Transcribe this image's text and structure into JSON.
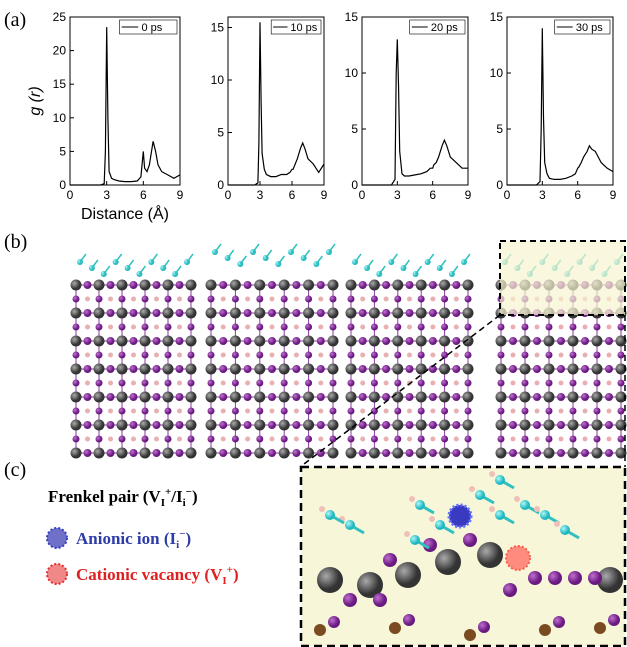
{
  "panels": {
    "a": "(a)",
    "b": "(b)",
    "c": "(c)"
  },
  "chart_data": [
    {
      "type": "line",
      "ylabel": "g (r)",
      "xlabel": "Distance (Å)",
      "x": [
        0,
        0.5,
        1,
        1.5,
        2,
        2.5,
        2.8,
        2.9,
        3.0,
        3.1,
        3.2,
        3.4,
        3.6,
        4,
        4.5,
        5,
        5.5,
        5.8,
        6,
        6.1,
        6.3,
        6.5,
        6.8,
        7,
        7.2,
        7.5,
        8,
        8.5,
        9
      ],
      "xlim": [
        0,
        9
      ],
      "xticks": [
        0,
        3,
        6,
        9
      ],
      "ylim": [
        0,
        25
      ],
      "yticks": [
        0,
        5,
        10,
        15,
        20,
        25
      ],
      "series": [
        {
          "name": "0 ps",
          "color": "#000000",
          "values": [
            0,
            0,
            0,
            0,
            0,
            0,
            0.2,
            5,
            23.5,
            10,
            2,
            1,
            0.8,
            0.6,
            0.5,
            0.5,
            0.6,
            1.2,
            5,
            2.5,
            2,
            3,
            6.5,
            5,
            3,
            2,
            1.5,
            1,
            1.5
          ]
        }
      ]
    },
    {
      "type": "line",
      "x": [
        0,
        0.5,
        1,
        1.5,
        2,
        2.5,
        2.8,
        2.9,
        3.0,
        3.1,
        3.2,
        3.4,
        3.6,
        4,
        4.5,
        5,
        5.5,
        5.8,
        6,
        6.1,
        6.3,
        6.5,
        6.8,
        7,
        7.2,
        7.5,
        8,
        8.5,
        9
      ],
      "xlim": [
        0,
        9
      ],
      "xticks": [
        0,
        3,
        6,
        9
      ],
      "ylim": [
        0,
        16
      ],
      "yticks": [
        0,
        5,
        10,
        15
      ],
      "series": [
        {
          "name": "10 ps",
          "color": "#000000",
          "values": [
            0,
            0,
            0,
            0,
            0,
            0,
            0.2,
            4,
            15.5,
            8,
            3,
            1.5,
            1,
            0.8,
            0.8,
            1,
            1,
            1.2,
            1.5,
            1.5,
            2,
            2.5,
            3.5,
            4,
            3.5,
            2.5,
            2,
            1.2,
            2
          ]
        }
      ]
    },
    {
      "type": "line",
      "x": [
        0,
        0.5,
        1,
        1.5,
        2,
        2.5,
        2.8,
        2.9,
        3.0,
        3.1,
        3.2,
        3.4,
        3.6,
        4,
        4.5,
        5,
        5.5,
        5.8,
        6,
        6.1,
        6.3,
        6.5,
        6.8,
        7,
        7.2,
        7.5,
        8,
        8.5,
        9
      ],
      "xlim": [
        0,
        9
      ],
      "xticks": [
        0,
        3,
        6,
        9
      ],
      "ylim": [
        0,
        15
      ],
      "yticks": [
        0,
        5,
        10,
        15
      ],
      "series": [
        {
          "name": "20 ps",
          "color": "#000000",
          "values": [
            0,
            0,
            0,
            0,
            0,
            0,
            0.5,
            10,
            13,
            9,
            3,
            1,
            0.8,
            0.8,
            0.9,
            1,
            1.2,
            1.5,
            1.5,
            1.8,
            2,
            2.5,
            3.5,
            4,
            3.5,
            2.5,
            2,
            1.5,
            1.5
          ]
        }
      ]
    },
    {
      "type": "line",
      "x": [
        0,
        0.5,
        1,
        1.5,
        2,
        2.5,
        2.8,
        2.9,
        3.0,
        3.1,
        3.2,
        3.4,
        3.6,
        4,
        4.5,
        5,
        5.5,
        5.8,
        6,
        6.1,
        6.3,
        6.5,
        6.8,
        7,
        7.2,
        7.5,
        8,
        8.5,
        9
      ],
      "xlim": [
        0,
        9
      ],
      "xticks": [
        0,
        3,
        6,
        9
      ],
      "ylim": [
        0,
        15
      ],
      "yticks": [
        0,
        5,
        10,
        15
      ],
      "series": [
        {
          "name": "30 ps",
          "color": "#000000",
          "values": [
            0,
            0,
            0,
            0,
            0,
            0,
            0.3,
            5,
            14,
            6,
            2,
            1,
            0.6,
            0.5,
            0.5,
            0.6,
            0.8,
            1,
            1.5,
            1.6,
            2,
            2.5,
            3,
            3.5,
            3.2,
            3,
            2,
            1.5,
            1.2
          ]
        }
      ]
    }
  ],
  "legend_c": {
    "frenkel": [
      "Frenkel pair (V",
      "I",
      "+",
      "/I",
      "i",
      "−",
      ")"
    ],
    "anionic": [
      "Anionic ion  (I",
      "i",
      "−",
      ")"
    ],
    "cationic": [
      "Cationic vacancy (V",
      "I",
      "+",
      ")"
    ]
  }
}
